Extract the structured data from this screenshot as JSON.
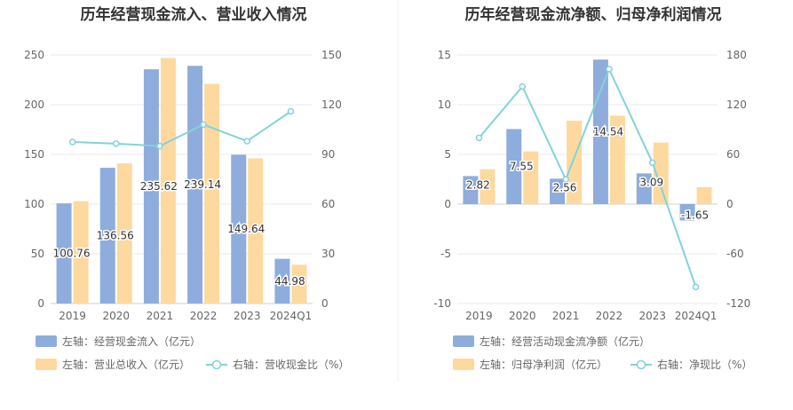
{
  "chart_data": [
    {
      "type": "bar",
      "title": "历年经营现金流入、营业收入情况",
      "categories": [
        "2019",
        "2020",
        "2021",
        "2022",
        "2023",
        "2024Q1"
      ],
      "y_left": {
        "ylim": [
          0,
          250
        ],
        "ticks": [
          0,
          50,
          100,
          150,
          200,
          250
        ]
      },
      "y_right": {
        "ylim": [
          0,
          150
        ],
        "ticks": [
          0,
          30,
          60,
          90,
          120,
          150
        ]
      },
      "series": [
        {
          "name": "左轴：经营现金流入（亿元）",
          "type": "bar",
          "axis": "left",
          "color": "#8eaddc",
          "values": [
            100.76,
            136.56,
            235.62,
            239.14,
            149.64,
            44.98
          ],
          "labels": [
            "100.76",
            "136.56",
            "235.62",
            "239.14",
            "149.64",
            "44.98"
          ]
        },
        {
          "name": "左轴：营业总收入（亿元）",
          "type": "bar",
          "axis": "left",
          "color": "#fdd9a0",
          "values": [
            103,
            141,
            247,
            221,
            146,
            39
          ]
        },
        {
          "name": "右轴：营收现金比（%）",
          "type": "line",
          "axis": "right",
          "color": "#82d3d8",
          "values": [
            97.5,
            96.5,
            95,
            108,
            98,
            116
          ]
        }
      ]
    },
    {
      "type": "bar",
      "title": "历年经营现金流净额、归母净利润情况",
      "categories": [
        "2019",
        "2020",
        "2021",
        "2022",
        "2023",
        "2024Q1"
      ],
      "y_left": {
        "ylim": [
          -10,
          15
        ],
        "ticks": [
          -10,
          -5,
          0,
          5,
          10,
          15
        ]
      },
      "y_right": {
        "ylim": [
          -120,
          180
        ],
        "ticks": [
          -120,
          -60,
          0,
          60,
          120,
          180
        ]
      },
      "series": [
        {
          "name": "左轴：经营活动现金流净额（亿元）",
          "type": "bar",
          "axis": "left",
          "color": "#8eaddc",
          "values": [
            2.82,
            7.55,
            2.56,
            14.54,
            3.09,
            -1.65
          ],
          "labels": [
            "2.82",
            "7.55",
            "2.56",
            "14.54",
            "3.09",
            "-1.65"
          ]
        },
        {
          "name": "左轴：归母净利润（亿元）",
          "type": "bar",
          "axis": "left",
          "color": "#fdd9a0",
          "values": [
            3.5,
            5.3,
            8.4,
            8.9,
            6.2,
            1.7
          ]
        },
        {
          "name": "右轴：净现比（%）",
          "type": "line",
          "axis": "right",
          "color": "#82d3d8",
          "values": [
            80,
            142,
            30,
            163,
            50,
            -100
          ]
        }
      ]
    }
  ]
}
